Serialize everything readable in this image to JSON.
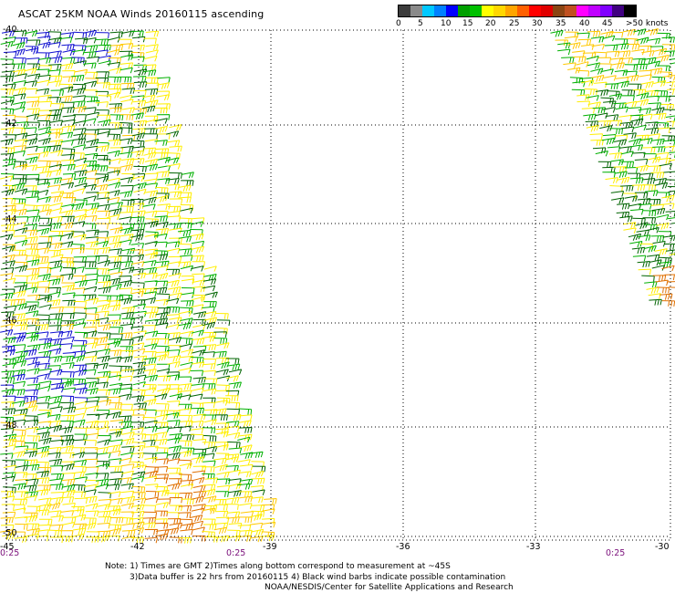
{
  "title": "ASCAT 25KM NOAA Winds 20160115 ascending",
  "legend": {
    "labels": [
      "0",
      "5",
      "10",
      "15",
      "20",
      "25",
      "30",
      "35",
      "40",
      "45",
      ">50 knots"
    ],
    "colors": [
      "#3c3c3c",
      "#8a8a8a",
      "#00c8ff",
      "#0080ff",
      "#0000ff",
      "#00a000",
      "#00c000",
      "#ffff00",
      "#ffd700",
      "#ffa500",
      "#ff6000",
      "#ff0000",
      "#e00000",
      "#8b4513",
      "#c05020",
      "#ff00ff",
      "#c000ff",
      "#8000ff",
      "#400080",
      "#000000"
    ]
  },
  "map": {
    "lat_labels": [
      "-40",
      "-42",
      "-44",
      "-46",
      "-48",
      "-50"
    ],
    "lon_labels": [
      "-45",
      "-42",
      "-39",
      "-36",
      "-33",
      "-30"
    ],
    "time_labels": [
      "0:25",
      "0:25",
      "0:25"
    ],
    "grid": true
  },
  "notes": {
    "line1": "Note: 1) Times are GMT 2)Times along bottom correspond to measurement at ~45S",
    "line2": "3)Data buffer is 22 hrs from 20160115 4) Black wind barbs indicate possible contamination",
    "line3": "NOAA/NESDIS/Center for Satellite Applications and Research"
  }
}
